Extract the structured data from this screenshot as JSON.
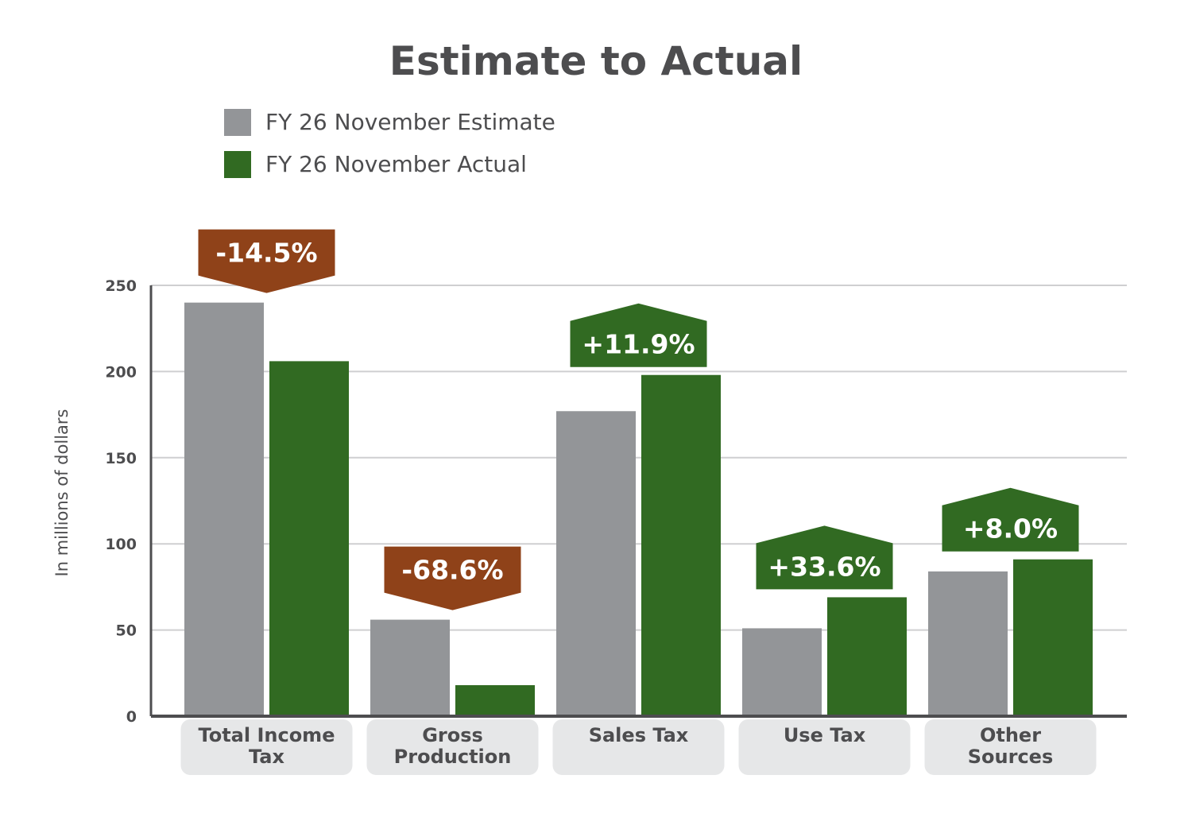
{
  "chart_data": {
    "type": "bar",
    "title": "Estimate to Actual",
    "ylabel": "In millions of dollars",
    "xlabel": "",
    "ylim": [
      0,
      250
    ],
    "yticks": [
      0,
      50,
      100,
      150,
      200,
      250
    ],
    "grid": true,
    "legend_position": "top-left",
    "categories": [
      [
        "Total Income",
        "Tax"
      ],
      [
        "Gross",
        "Production"
      ],
      [
        "Sales Tax"
      ],
      [
        "Use Tax"
      ],
      [
        "Other",
        "Sources"
      ]
    ],
    "series": [
      {
        "name": "FY 26 November Estimate",
        "color": "#939598",
        "values": [
          240,
          56,
          177,
          51,
          84
        ]
      },
      {
        "name": "FY 26 November Actual",
        "color": "#316a22",
        "values": [
          206,
          18,
          198,
          69,
          91
        ]
      }
    ],
    "annotations": [
      {
        "text": "-14.5%",
        "direction": "down",
        "color": "#8f4219"
      },
      {
        "text": "-68.6%",
        "direction": "down",
        "color": "#8f4219"
      },
      {
        "text": "+11.9%",
        "direction": "up",
        "color": "#316a22"
      },
      {
        "text": "+33.6%",
        "direction": "up",
        "color": "#316a22"
      },
      {
        "text": "+8.0%",
        "direction": "up",
        "color": "#316a22"
      }
    ],
    "colors": {
      "text": "#4d4d4f",
      "grid": "#cfcfd1",
      "axis": "#4d4d4f",
      "category_box": "#e6e7e8"
    }
  }
}
